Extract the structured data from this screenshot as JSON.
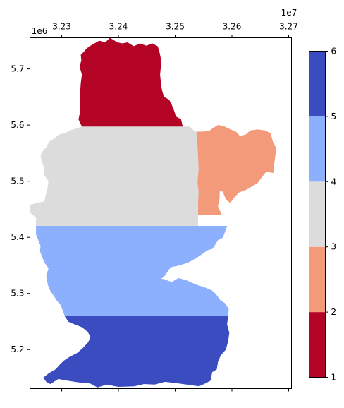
{
  "chart_data": {
    "type": "heatmap",
    "title": "",
    "xlabel": "",
    "ylabel": "",
    "x_offset_label": "1e7",
    "y_offset_label": "1e6",
    "xlim": [
      3.2244,
      3.2705
    ],
    "ylim": [
      5.1305,
      5.7555
    ],
    "x_ticks": [
      {
        "value": 3.23,
        "label": "3.23"
      },
      {
        "value": 3.24,
        "label": "3.24"
      },
      {
        "value": 3.25,
        "label": "3.25"
      },
      {
        "value": 3.26,
        "label": "3.26"
      },
      {
        "value": 3.27,
        "label": "3.27"
      }
    ],
    "y_ticks": [
      {
        "value": 5.2,
        "label": "5.2"
      },
      {
        "value": 5.3,
        "label": "5.3"
      },
      {
        "value": 5.4,
        "label": "5.4"
      },
      {
        "value": 5.5,
        "label": "5.5"
      },
      {
        "value": 5.6,
        "label": "5.6"
      },
      {
        "value": 5.7,
        "label": "5.7"
      }
    ],
    "colorbar": {
      "colormap": "coolwarm",
      "range": [
        1,
        6
      ],
      "ticks": [
        {
          "value": 1,
          "label": "1"
        },
        {
          "value": 2,
          "label": "2"
        },
        {
          "value": 3,
          "label": "3"
        },
        {
          "value": 4,
          "label": "4"
        },
        {
          "value": 5,
          "label": "5"
        },
        {
          "value": 6,
          "label": "6"
        }
      ],
      "bands": [
        {
          "from": 1,
          "to": 2,
          "color": "#b40426"
        },
        {
          "from": 2,
          "to": 3,
          "color": "#f39a7b"
        },
        {
          "from": 3,
          "to": 4,
          "color": "#dddcdc"
        },
        {
          "from": 4,
          "to": 5,
          "color": "#8db0fe"
        },
        {
          "from": 5,
          "to": 6,
          "color": "#3b4cc0"
        }
      ]
    },
    "regions": [
      {
        "class": 1,
        "color": "#b40426",
        "outline": [
          [
            3.2333,
            5.66
          ],
          [
            3.2334,
            5.675
          ],
          [
            3.2336,
            5.69
          ],
          [
            3.2333,
            5.7
          ],
          [
            3.2332,
            5.705
          ],
          [
            3.2335,
            5.715
          ],
          [
            3.2334,
            5.725
          ],
          [
            3.2339,
            5.73
          ],
          [
            3.2343,
            5.735
          ],
          [
            3.2349,
            5.74
          ],
          [
            3.2358,
            5.745
          ],
          [
            3.2366,
            5.75
          ],
          [
            3.2377,
            5.747
          ],
          [
            3.2385,
            5.755
          ],
          [
            3.2398,
            5.747
          ],
          [
            3.2407,
            5.745
          ],
          [
            3.2416,
            5.747
          ],
          [
            3.2427,
            5.74
          ],
          [
            3.2438,
            5.745
          ],
          [
            3.2449,
            5.741
          ],
          [
            3.246,
            5.745
          ],
          [
            3.2469,
            5.74
          ],
          [
            3.2472,
            5.73
          ],
          [
            3.2474,
            5.72
          ],
          [
            3.2475,
            5.71
          ],
          [
            3.2474,
            5.7
          ],
          [
            3.2473,
            5.69
          ],
          [
            3.2474,
            5.68
          ],
          [
            3.2475,
            5.67
          ],
          [
            3.2477,
            5.66
          ],
          [
            3.248,
            5.65
          ],
          [
            3.2489,
            5.645
          ],
          [
            3.2494,
            5.635
          ],
          [
            3.2498,
            5.625
          ],
          [
            3.2501,
            5.615
          ],
          [
            3.251,
            5.61
          ],
          [
            3.2513,
            5.597
          ],
          [
            3.2336,
            5.597
          ],
          [
            3.233,
            5.61
          ],
          [
            3.2333,
            5.625
          ],
          [
            3.2332,
            5.64
          ],
          [
            3.2333,
            5.66
          ]
        ]
      },
      {
        "class": 2,
        "color": "#f39a7b",
        "outline": [
          [
            3.2538,
            5.588
          ],
          [
            3.2551,
            5.588
          ],
          [
            3.2561,
            5.59
          ],
          [
            3.2568,
            5.595
          ],
          [
            3.2576,
            5.6
          ],
          [
            3.2587,
            5.597
          ],
          [
            3.2597,
            5.592
          ],
          [
            3.2607,
            5.588
          ],
          [
            3.2614,
            5.58
          ],
          [
            3.2625,
            5.583
          ],
          [
            3.2632,
            5.59
          ],
          [
            3.2645,
            5.592
          ],
          [
            3.2658,
            5.59
          ],
          [
            3.2668,
            5.585
          ],
          [
            3.2672,
            5.57
          ],
          [
            3.2678,
            5.558
          ],
          [
            3.2676,
            5.545
          ],
          [
            3.2674,
            5.53
          ],
          [
            3.2673,
            5.515
          ],
          [
            3.266,
            5.517
          ],
          [
            3.2653,
            5.508
          ],
          [
            3.2645,
            5.497
          ],
          [
            3.2635,
            5.491
          ],
          [
            3.2625,
            5.485
          ],
          [
            3.2612,
            5.48
          ],
          [
            3.2603,
            5.47
          ],
          [
            3.2597,
            5.462
          ],
          [
            3.259,
            5.467
          ],
          [
            3.2584,
            5.482
          ],
          [
            3.2578,
            5.482
          ],
          [
            3.2578,
            5.47
          ],
          [
            3.2575,
            5.455
          ],
          [
            3.2582,
            5.44
          ],
          [
            3.254,
            5.44
          ],
          [
            3.254,
            5.46
          ],
          [
            3.2541,
            5.48
          ],
          [
            3.2539,
            5.5
          ],
          [
            3.2541,
            5.52
          ],
          [
            3.254,
            5.545
          ],
          [
            3.2539,
            5.565
          ],
          [
            3.2538,
            5.588
          ]
        ]
      },
      {
        "class": 3,
        "color": "#dddcdc",
        "outline": [
          [
            3.2336,
            5.597
          ],
          [
            3.2525,
            5.597
          ],
          [
            3.2535,
            5.588
          ],
          [
            3.2538,
            5.588
          ],
          [
            3.2539,
            5.565
          ],
          [
            3.254,
            5.545
          ],
          [
            3.2541,
            5.52
          ],
          [
            3.2539,
            5.5
          ],
          [
            3.2541,
            5.48
          ],
          [
            3.254,
            5.46
          ],
          [
            3.254,
            5.42
          ],
          [
            3.2255,
            5.42
          ],
          [
            3.2255,
            5.435
          ],
          [
            3.2244,
            5.445
          ],
          [
            3.2245,
            5.458
          ],
          [
            3.2253,
            5.46
          ],
          [
            3.2262,
            5.462
          ],
          [
            3.227,
            5.464
          ],
          [
            3.2272,
            5.475
          ],
          [
            3.2275,
            5.485
          ],
          [
            3.2277,
            5.5
          ],
          [
            3.227,
            5.51
          ],
          [
            3.2269,
            5.525
          ],
          [
            3.2265,
            5.535
          ],
          [
            3.2263,
            5.545
          ],
          [
            3.2266,
            5.552
          ],
          [
            3.2273,
            5.56
          ],
          [
            3.2278,
            5.57
          ],
          [
            3.2286,
            5.575
          ],
          [
            3.2296,
            5.583
          ],
          [
            3.2305,
            5.585
          ],
          [
            3.2315,
            5.59
          ],
          [
            3.2327,
            5.594
          ],
          [
            3.2336,
            5.597
          ]
        ]
      },
      {
        "class": 4,
        "color": "#8db0fe",
        "outline": [
          [
            3.2255,
            5.42
          ],
          [
            3.2591,
            5.42
          ],
          [
            3.2584,
            5.4
          ],
          [
            3.2575,
            5.395
          ],
          [
            3.2566,
            5.38
          ],
          [
            3.2556,
            5.377
          ],
          [
            3.2547,
            5.37
          ],
          [
            3.2535,
            5.362
          ],
          [
            3.2522,
            5.355
          ],
          [
            3.2506,
            5.35
          ],
          [
            3.2492,
            5.347
          ],
          [
            3.248,
            5.33
          ],
          [
            3.247,
            5.323
          ],
          [
            3.2452,
            5.325
          ],
          [
            3.244,
            5.32
          ],
          [
            3.2428,
            5.323
          ],
          [
            3.242,
            5.318
          ],
          [
            3.2412,
            5.32
          ],
          [
            3.2418,
            5.327
          ],
          [
            3.2427,
            5.333
          ],
          [
            3.2443,
            5.331
          ],
          [
            3.2461,
            5.328
          ],
          [
            3.248,
            5.325
          ],
          [
            3.2494,
            5.32
          ],
          [
            3.2506,
            5.327
          ],
          [
            3.252,
            5.323
          ],
          [
            3.2538,
            5.315
          ],
          [
            3.2553,
            5.31
          ],
          [
            3.2565,
            5.305
          ],
          [
            3.2572,
            5.298
          ],
          [
            3.2579,
            5.288
          ],
          [
            3.2588,
            5.282
          ],
          [
            3.2594,
            5.272
          ],
          [
            3.2593,
            5.259
          ],
          [
            3.2306,
            5.259
          ],
          [
            3.2302,
            5.27
          ],
          [
            3.2298,
            5.28
          ],
          [
            3.2292,
            5.287
          ],
          [
            3.2287,
            5.295
          ],
          [
            3.228,
            5.305
          ],
          [
            3.2276,
            5.315
          ],
          [
            3.2273,
            5.33
          ],
          [
            3.2277,
            5.345
          ],
          [
            3.227,
            5.355
          ],
          [
            3.2266,
            5.365
          ],
          [
            3.2262,
            5.375
          ],
          [
            3.2263,
            5.385
          ],
          [
            3.2255,
            5.405
          ],
          [
            3.2255,
            5.42
          ]
        ]
      },
      {
        "class": 5,
        "color": "#3b4cc0",
        "outline": [
          [
            3.2306,
            5.259
          ],
          [
            3.2593,
            5.259
          ],
          [
            3.2591,
            5.245
          ],
          [
            3.2595,
            5.23
          ],
          [
            3.2593,
            5.215
          ],
          [
            3.2589,
            5.2
          ],
          [
            3.258,
            5.19
          ],
          [
            3.2575,
            5.178
          ],
          [
            3.2573,
            5.165
          ],
          [
            3.2565,
            5.16
          ],
          [
            3.2562,
            5.145
          ],
          [
            3.2553,
            5.14
          ],
          [
            3.2542,
            5.135
          ],
          [
            3.252,
            5.138
          ],
          [
            3.2506,
            5.14
          ],
          [
            3.2482,
            5.143
          ],
          [
            3.2464,
            5.138
          ],
          [
            3.2445,
            5.139
          ],
          [
            3.2428,
            5.135
          ],
          [
            3.24,
            5.134
          ],
          [
            3.2379,
            5.138
          ],
          [
            3.2363,
            5.133
          ],
          [
            3.235,
            5.14
          ],
          [
            3.233,
            5.142
          ],
          [
            3.231,
            5.145
          ],
          [
            3.2294,
            5.148
          ],
          [
            3.228,
            5.139
          ],
          [
            3.2273,
            5.143
          ],
          [
            3.2268,
            5.15
          ],
          [
            3.2278,
            5.158
          ],
          [
            3.229,
            5.165
          ],
          [
            3.2296,
            5.172
          ],
          [
            3.2304,
            5.18
          ],
          [
            3.2313,
            5.186
          ],
          [
            3.2328,
            5.194
          ],
          [
            3.2338,
            5.203
          ],
          [
            3.2347,
            5.213
          ],
          [
            3.2351,
            5.223
          ],
          [
            3.2346,
            5.232
          ],
          [
            3.2336,
            5.24
          ],
          [
            3.2323,
            5.245
          ],
          [
            3.2312,
            5.25
          ],
          [
            3.2306,
            5.259
          ]
        ]
      }
    ]
  }
}
